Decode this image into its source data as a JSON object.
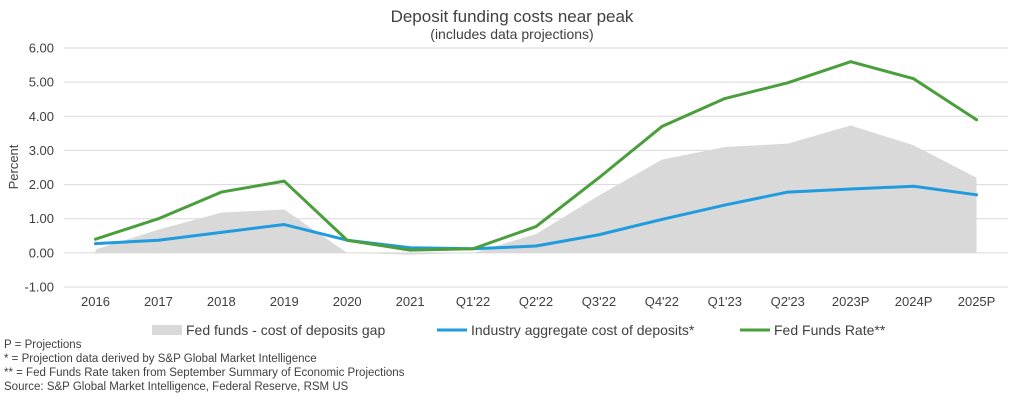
{
  "chart_data": {
    "type": "line",
    "title": "Deposit funding costs near peak",
    "subtitle": "(includes data projections)",
    "ylabel": "Percent",
    "xlabel": "",
    "ylim": [
      -1.0,
      6.0
    ],
    "yticks": [
      "-1.00",
      "0.00",
      "1.00",
      "2.00",
      "3.00",
      "4.00",
      "5.00",
      "6.00"
    ],
    "grid": true,
    "legend_position": "bottom",
    "categories": [
      "2016",
      "2017",
      "2018",
      "2019",
      "2020",
      "2021",
      "Q1'22",
      "Q2'22",
      "Q3'22",
      "Q4'22",
      "Q1'23",
      "Q2'23",
      "2023P",
      "2024P",
      "2025P"
    ],
    "series": [
      {
        "name": "Fed funds - cost of deposits gap",
        "kind": "area",
        "color": "#d9d9d9",
        "values": [
          0.1,
          0.68,
          1.18,
          1.27,
          0.0,
          -0.05,
          0.0,
          0.55,
          1.68,
          2.73,
          3.1,
          3.2,
          3.73,
          3.15,
          2.2
        ]
      },
      {
        "name": "Industry aggregate cost of deposits*",
        "kind": "line",
        "color": "#1f9bde",
        "values": [
          0.27,
          0.37,
          0.6,
          0.83,
          0.37,
          0.15,
          0.12,
          0.2,
          0.53,
          0.98,
          1.4,
          1.78,
          1.87,
          1.95,
          1.7
        ]
      },
      {
        "name": "Fed Funds Rate**",
        "kind": "line",
        "color": "#4a9e3c",
        "values": [
          0.4,
          1.0,
          1.78,
          2.1,
          0.37,
          0.08,
          0.12,
          0.77,
          2.2,
          3.7,
          4.52,
          4.98,
          5.6,
          5.1,
          3.9
        ]
      }
    ]
  },
  "footnotes": [
    "P = Projections",
    "* = Projection data derived by S&P Global Market Intelligence",
    "** = Fed Funds Rate taken from September Summary of Economic Projections",
    "Source: S&P Global Market Intelligence, Federal Reserve, RSM US"
  ]
}
